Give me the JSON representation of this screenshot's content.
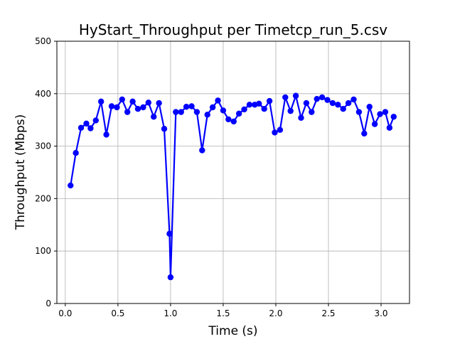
{
  "chart_data": {
    "type": "line",
    "title": "HyStart_Throughput per Timetcp_run_5.csv",
    "xlabel": "Time (s)",
    "ylabel": "Throughput (Mbps)",
    "xlim": [
      -0.08,
      3.27
    ],
    "ylim": [
      0,
      500
    ],
    "xticks": [
      0.0,
      0.5,
      1.0,
      1.5,
      2.0,
      2.5,
      3.0
    ],
    "xtick_labels": [
      "0.0",
      "0.5",
      "1.0",
      "1.5",
      "2.0",
      "2.5",
      "3.0"
    ],
    "yticks": [
      0,
      100,
      200,
      300,
      400,
      500
    ],
    "ytick_labels": [
      "0",
      "100",
      "200",
      "300",
      "400",
      "500"
    ],
    "grid": true,
    "legend": "none",
    "series": [
      {
        "color": "#0000ff",
        "marker": "circle",
        "x": [
          0.05,
          0.1,
          0.15,
          0.2,
          0.24,
          0.29,
          0.34,
          0.39,
          0.44,
          0.49,
          0.54,
          0.59,
          0.64,
          0.69,
          0.74,
          0.79,
          0.84,
          0.89,
          0.94,
          0.99,
          1.0,
          1.05,
          1.1,
          1.15,
          1.2,
          1.25,
          1.3,
          1.35,
          1.4,
          1.45,
          1.5,
          1.55,
          1.6,
          1.65,
          1.7,
          1.75,
          1.8,
          1.84,
          1.89,
          1.94,
          1.99,
          2.04,
          2.09,
          2.14,
          2.19,
          2.24,
          2.29,
          2.34,
          2.39,
          2.44,
          2.49,
          2.54,
          2.59,
          2.64,
          2.69,
          2.74,
          2.79,
          2.84,
          2.89,
          2.94,
          2.99,
          3.04,
          3.08,
          3.12
        ],
        "y": [
          225,
          287,
          335,
          343,
          334,
          349,
          385,
          322,
          376,
          374,
          389,
          365,
          385,
          371,
          374,
          383,
          356,
          382,
          333,
          133,
          50,
          365,
          365,
          375,
          376,
          365,
          292,
          360,
          374,
          387,
          368,
          351,
          347,
          362,
          370,
          379,
          379,
          381,
          371,
          386,
          326,
          331,
          393,
          367,
          396,
          354,
          382,
          365,
          390,
          393,
          388,
          382,
          379,
          371,
          382,
          389,
          365,
          324,
          375,
          342,
          361,
          365,
          335,
          356
        ]
      }
    ]
  }
}
